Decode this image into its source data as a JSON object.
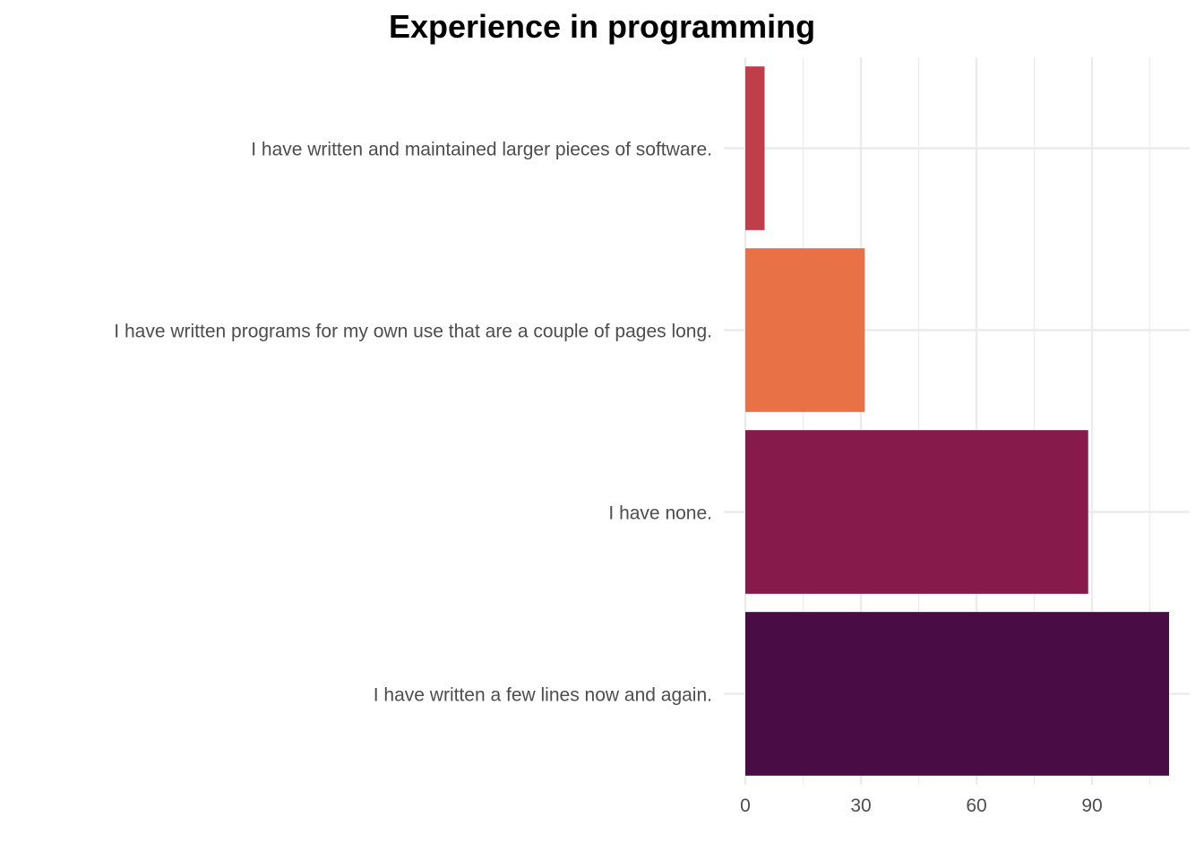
{
  "chart_data": {
    "type": "bar",
    "orientation": "horizontal",
    "title": "Experience in programming",
    "xlabel": "",
    "ylabel": "",
    "categories": [
      "I have written and maintained larger pieces of software.",
      "I have written programs for my own use that are a couple of pages long.",
      "I have none.",
      "I have written a few lines now and again."
    ],
    "values": [
      5,
      31,
      89,
      110
    ],
    "colors": [
      "#c03e4a",
      "#e87245",
      "#861a4a",
      "#490c45"
    ],
    "xlim": [
      0,
      115
    ],
    "xticks": [
      0,
      30,
      60,
      90
    ],
    "grid": true,
    "legend": "none"
  }
}
